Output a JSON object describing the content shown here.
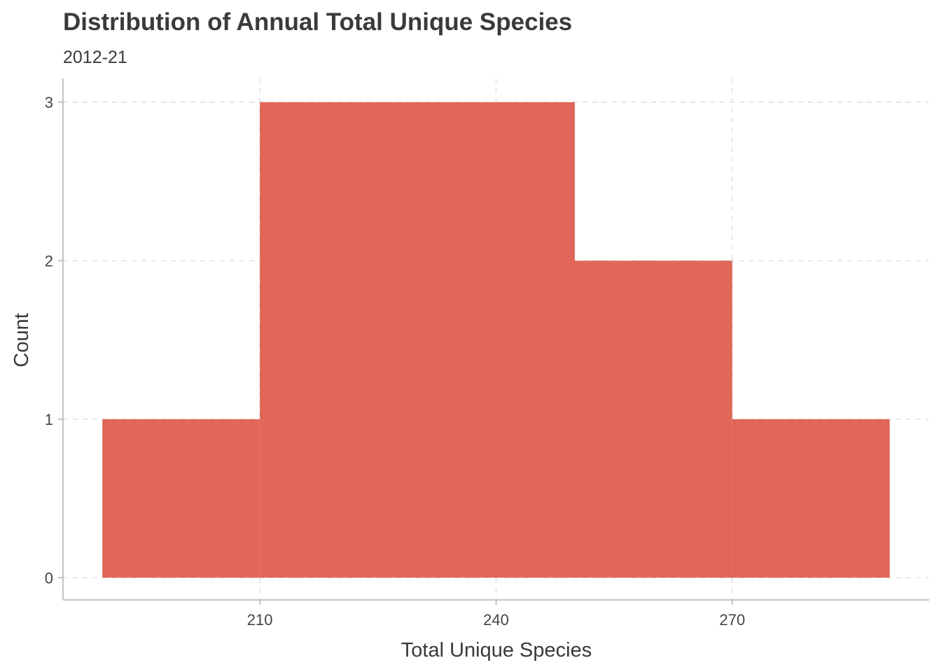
{
  "chart_data": {
    "type": "bar",
    "title": "Distribution of Annual Total Unique Species",
    "subtitle": "2012-21",
    "xlabel": "Total Unique Species",
    "ylabel": "Count",
    "bins": [
      {
        "x0": 190,
        "x1": 210,
        "count": 1
      },
      {
        "x0": 210,
        "x1": 250,
        "count": 3
      },
      {
        "x0": 250,
        "x1": 270,
        "count": 2
      },
      {
        "x0": 270,
        "x1": 290,
        "count": 1
      }
    ],
    "xticks": [
      210,
      240,
      270
    ],
    "yticks": [
      0,
      1,
      2,
      3
    ],
    "xlim": [
      185,
      295
    ],
    "ylim": [
      -0.14,
      3.15
    ],
    "bar_color": "#e06759",
    "grid": true
  }
}
